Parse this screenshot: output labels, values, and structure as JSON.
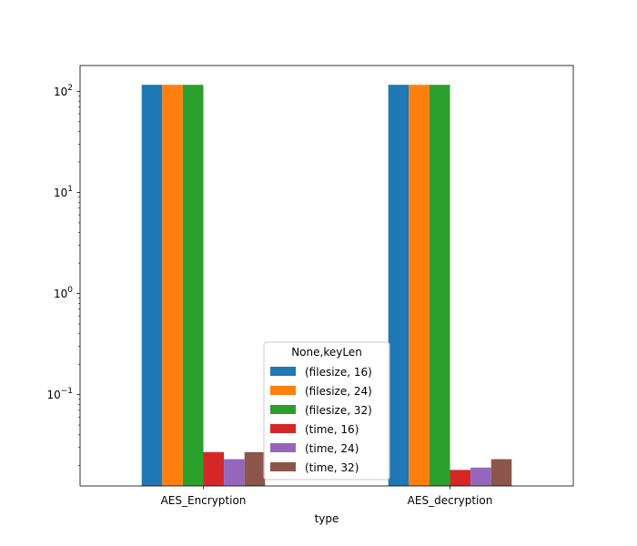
{
  "chart_data": {
    "type": "bar",
    "title": "",
    "xlabel": "type",
    "ylabel": "",
    "yscale": "log",
    "ylim": [
      0.0125,
      180
    ],
    "categories": [
      "AES_Encryption",
      "AES_decryption"
    ],
    "yticks": [
      {
        "value": 0.1,
        "base": "10",
        "exp": "−1"
      },
      {
        "value": 1,
        "base": "10",
        "exp": "0"
      },
      {
        "value": 10,
        "base": "10",
        "exp": "1"
      },
      {
        "value": 100,
        "base": "10",
        "exp": "2"
      }
    ],
    "series": [
      {
        "name": "(filesize, 16)",
        "color": "#1f77b4",
        "values": [
          116,
          116
        ]
      },
      {
        "name": "(filesize, 24)",
        "color": "#ff7f0e",
        "values": [
          116,
          116
        ]
      },
      {
        "name": "(filesize, 32)",
        "color": "#2ca02c",
        "values": [
          116,
          116
        ]
      },
      {
        "name": "(time, 16)",
        "color": "#d62728",
        "values": [
          0.027,
          0.018
        ]
      },
      {
        "name": "(time, 24)",
        "color": "#9467bd",
        "values": [
          0.023,
          0.019
        ]
      },
      {
        "name": "(time, 32)",
        "color": "#8c564b",
        "values": [
          0.027,
          0.023
        ]
      }
    ],
    "legend": {
      "title": "None,keyLen",
      "position": "lower center"
    },
    "grid": false
  }
}
